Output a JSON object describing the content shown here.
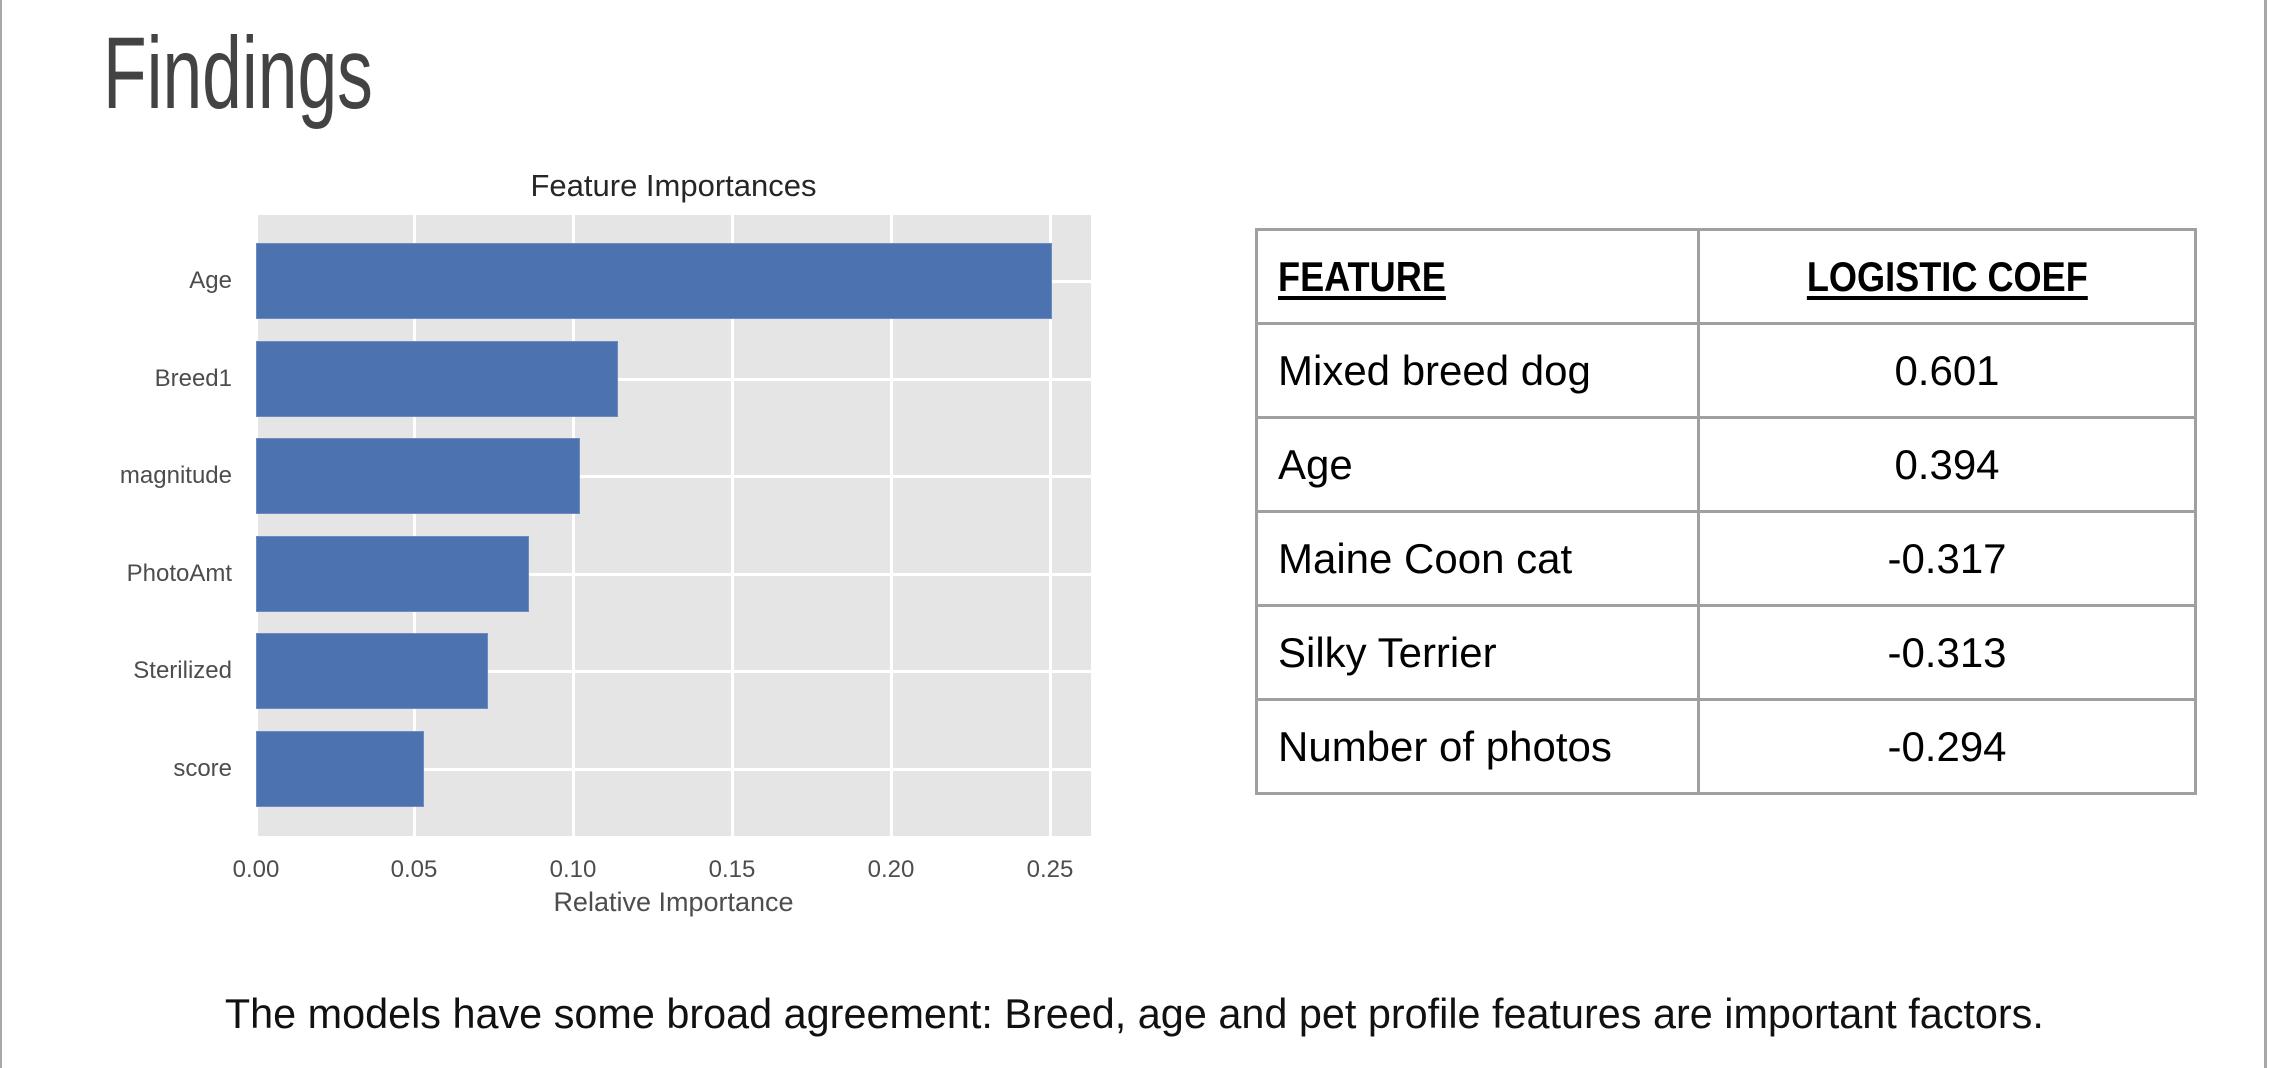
{
  "slide": {
    "title": "Findings",
    "caption": "The models have some broad agreement: Breed, age and pet profile features are important factors."
  },
  "chart": {
    "title": "Feature Importances",
    "xlabel": "Relative Importance",
    "xticks": [
      "0.00",
      "0.05",
      "0.10",
      "0.15",
      "0.20",
      "0.25"
    ],
    "bars": [
      {
        "label": "Age",
        "value": 0.251
      },
      {
        "label": "Breed1",
        "value": 0.114
      },
      {
        "label": "magnitude",
        "value": 0.102
      },
      {
        "label": "PhotoAmt",
        "value": 0.086
      },
      {
        "label": "Sterilized",
        "value": 0.073
      },
      {
        "label": "score",
        "value": 0.053
      }
    ],
    "bar_color": "#4c72b0",
    "background_color": "#e5e5e5"
  },
  "table": {
    "headers": [
      "FEATURE",
      "LOGISTIC COEF"
    ],
    "rows": [
      {
        "feature": "Mixed breed dog",
        "coef": "0.601"
      },
      {
        "feature": "Age",
        "coef": "0.394"
      },
      {
        "feature": "Maine Coon cat",
        "coef": "-0.317"
      },
      {
        "feature": "Silky Terrier",
        "coef": "-0.313"
      },
      {
        "feature": "Number of photos",
        "coef": "-0.294"
      }
    ]
  },
  "chart_data": {
    "type": "bar",
    "orientation": "horizontal",
    "title": "Feature Importances",
    "xlabel": "Relative Importance",
    "ylabel": "",
    "categories": [
      "Age",
      "Breed1",
      "magnitude",
      "PhotoAmt",
      "Sterilized",
      "score"
    ],
    "values": [
      0.251,
      0.114,
      0.102,
      0.086,
      0.073,
      0.053
    ],
    "xlim": [
      0.0,
      0.263
    ],
    "xticks": [
      0.0,
      0.05,
      0.1,
      0.15,
      0.2,
      0.25
    ],
    "grid": true,
    "legend": null
  }
}
